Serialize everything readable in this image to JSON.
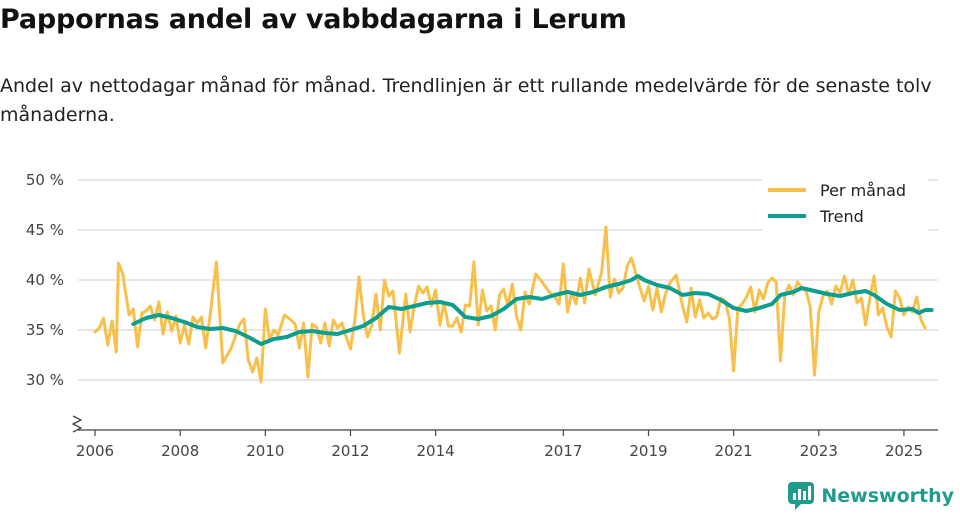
{
  "header": {
    "title": "Pappornas andel av vabbdagarna i Lerum",
    "subtitle": "Andel av nettodagar månad för månad. Trendlinjen är ett rullande medelvärde för de senaste tolv månaderna."
  },
  "brand": {
    "name": "Newsworthy",
    "icon": "newsworthy-logo-icon"
  },
  "colors": {
    "per_month": "#f8c04b",
    "trend": "#0e9e8e",
    "grid": "#dddddd",
    "axis": "#444444"
  },
  "chart_data": {
    "type": "line",
    "title": "Pappornas andel av vabbdagarna i Lerum",
    "xlabel": "",
    "ylabel": "",
    "ylim": [
      25,
      50
    ],
    "yticks": [
      30,
      35,
      40,
      45,
      50
    ],
    "ytick_labels": [
      "30 %",
      "35 %",
      "40 %",
      "45 %",
      "50 %"
    ],
    "xlim": [
      2005.6,
      2025.8
    ],
    "xticks": [
      2006,
      2008,
      2010,
      2012,
      2014,
      2017,
      2019,
      2021,
      2023,
      2025
    ],
    "xtick_labels": [
      "2006",
      "2008",
      "2010",
      "2012",
      "2014",
      "2017",
      "2019",
      "2021",
      "2023",
      "2025"
    ],
    "axis_break": true,
    "grid": true,
    "legend_position": "top-right",
    "legend": [
      "Per månad",
      "Trend"
    ],
    "series": [
      {
        "name": "Per månad",
        "color": "#f8c04b",
        "points": [
          [
            2006.0,
            34.8
          ],
          [
            2006.1,
            35.2
          ],
          [
            2006.2,
            36.2
          ],
          [
            2006.3,
            33.5
          ],
          [
            2006.4,
            35.9
          ],
          [
            2006.5,
            32.8
          ],
          [
            2006.55,
            41.7
          ],
          [
            2006.65,
            40.6
          ],
          [
            2006.8,
            36.5
          ],
          [
            2006.9,
            37.1
          ],
          [
            2007.0,
            33.3
          ],
          [
            2007.1,
            36.7
          ],
          [
            2007.2,
            36.9
          ],
          [
            2007.3,
            37.4
          ],
          [
            2007.4,
            36.0
          ],
          [
            2007.5,
            37.8
          ],
          [
            2007.6,
            34.6
          ],
          [
            2007.7,
            36.8
          ],
          [
            2007.8,
            34.9
          ],
          [
            2007.9,
            36.4
          ],
          [
            2008.0,
            33.7
          ],
          [
            2008.1,
            35.5
          ],
          [
            2008.2,
            33.6
          ],
          [
            2008.3,
            36.3
          ],
          [
            2008.4,
            35.7
          ],
          [
            2008.5,
            36.3
          ],
          [
            2008.6,
            33.2
          ],
          [
            2008.7,
            36.4
          ],
          [
            2008.85,
            41.8
          ],
          [
            2009.0,
            31.7
          ],
          [
            2009.2,
            33.2
          ],
          [
            2009.4,
            35.6
          ],
          [
            2009.5,
            36.1
          ],
          [
            2009.6,
            32.0
          ],
          [
            2009.7,
            30.8
          ],
          [
            2009.8,
            32.2
          ],
          [
            2009.9,
            29.8
          ],
          [
            2010.0,
            37.1
          ],
          [
            2010.1,
            34.0
          ],
          [
            2010.2,
            35.0
          ],
          [
            2010.3,
            34.5
          ],
          [
            2010.45,
            36.5
          ],
          [
            2010.6,
            36.0
          ],
          [
            2010.7,
            35.6
          ],
          [
            2010.8,
            33.2
          ],
          [
            2010.9,
            35.7
          ],
          [
            2011.0,
            30.3
          ],
          [
            2011.1,
            35.6
          ],
          [
            2011.2,
            35.3
          ],
          [
            2011.3,
            33.7
          ],
          [
            2011.4,
            35.7
          ],
          [
            2011.5,
            33.4
          ],
          [
            2011.6,
            36.0
          ],
          [
            2011.7,
            35.2
          ],
          [
            2011.8,
            35.7
          ],
          [
            2011.9,
            34.3
          ],
          [
            2012.0,
            33.1
          ],
          [
            2012.1,
            35.9
          ],
          [
            2012.2,
            40.3
          ],
          [
            2012.3,
            36.6
          ],
          [
            2012.4,
            34.3
          ],
          [
            2012.5,
            35.5
          ],
          [
            2012.6,
            38.6
          ],
          [
            2012.7,
            35.0
          ],
          [
            2012.8,
            40.0
          ],
          [
            2012.9,
            38.4
          ],
          [
            2013.0,
            38.9
          ],
          [
            2013.15,
            32.7
          ],
          [
            2013.3,
            38.6
          ],
          [
            2013.4,
            34.8
          ],
          [
            2013.5,
            37.4
          ],
          [
            2013.6,
            39.4
          ],
          [
            2013.7,
            38.7
          ],
          [
            2013.8,
            39.3
          ],
          [
            2013.9,
            37.4
          ],
          [
            2014.0,
            39.0
          ],
          [
            2014.1,
            35.5
          ],
          [
            2014.2,
            37.7
          ],
          [
            2014.3,
            35.4
          ],
          [
            2014.4,
            35.4
          ],
          [
            2014.5,
            36.2
          ],
          [
            2014.6,
            34.8
          ],
          [
            2014.7,
            37.5
          ],
          [
            2014.8,
            37.4
          ],
          [
            2014.9,
            41.8
          ],
          [
            2015.0,
            35.5
          ],
          [
            2015.1,
            39.0
          ],
          [
            2015.2,
            36.9
          ],
          [
            2015.3,
            37.4
          ],
          [
            2015.4,
            35.0
          ],
          [
            2015.5,
            38.5
          ],
          [
            2015.6,
            39.1
          ],
          [
            2015.7,
            37.4
          ],
          [
            2015.8,
            39.6
          ],
          [
            2015.9,
            36.4
          ],
          [
            2016.0,
            35.0
          ],
          [
            2016.1,
            38.8
          ],
          [
            2016.2,
            37.6
          ],
          [
            2016.35,
            40.6
          ],
          [
            2016.5,
            39.8
          ],
          [
            2016.65,
            38.9
          ],
          [
            2016.8,
            38.3
          ],
          [
            2016.9,
            37.6
          ],
          [
            2017.0,
            41.6
          ],
          [
            2017.1,
            36.8
          ],
          [
            2017.2,
            38.8
          ],
          [
            2017.3,
            37.6
          ],
          [
            2017.4,
            40.2
          ],
          [
            2017.5,
            37.7
          ],
          [
            2017.6,
            41.1
          ],
          [
            2017.75,
            38.5
          ],
          [
            2017.9,
            40.8
          ],
          [
            2018.0,
            45.3
          ],
          [
            2018.1,
            38.3
          ],
          [
            2018.2,
            40.1
          ],
          [
            2018.3,
            38.7
          ],
          [
            2018.4,
            39.2
          ],
          [
            2018.5,
            41.4
          ],
          [
            2018.6,
            42.2
          ],
          [
            2018.75,
            39.9
          ],
          [
            2018.9,
            37.9
          ],
          [
            2019.0,
            39.4
          ],
          [
            2019.1,
            37.0
          ],
          [
            2019.2,
            39.2
          ],
          [
            2019.3,
            36.8
          ],
          [
            2019.4,
            38.6
          ],
          [
            2019.5,
            39.7
          ],
          [
            2019.65,
            40.5
          ],
          [
            2019.8,
            37.4
          ],
          [
            2019.9,
            35.8
          ],
          [
            2020.0,
            39.2
          ],
          [
            2020.1,
            36.3
          ],
          [
            2020.2,
            38.0
          ],
          [
            2020.3,
            36.2
          ],
          [
            2020.4,
            36.7
          ],
          [
            2020.5,
            36.1
          ],
          [
            2020.6,
            36.3
          ],
          [
            2020.7,
            38.2
          ],
          [
            2020.8,
            37.9
          ],
          [
            2020.9,
            36.1
          ],
          [
            2021.0,
            30.9
          ],
          [
            2021.1,
            37.2
          ],
          [
            2021.2,
            37.6
          ],
          [
            2021.3,
            38.3
          ],
          [
            2021.4,
            39.3
          ],
          [
            2021.5,
            36.8
          ],
          [
            2021.6,
            39.0
          ],
          [
            2021.7,
            38.1
          ],
          [
            2021.8,
            39.7
          ],
          [
            2021.9,
            40.2
          ],
          [
            2022.0,
            39.8
          ],
          [
            2022.1,
            31.9
          ],
          [
            2022.2,
            38.4
          ],
          [
            2022.3,
            39.5
          ],
          [
            2022.4,
            38.5
          ],
          [
            2022.5,
            39.8
          ],
          [
            2022.6,
            39.2
          ],
          [
            2022.7,
            38.9
          ],
          [
            2022.8,
            37.3
          ],
          [
            2022.9,
            30.5
          ],
          [
            2023.0,
            36.8
          ],
          [
            2023.1,
            38.4
          ],
          [
            2023.2,
            38.9
          ],
          [
            2023.3,
            37.6
          ],
          [
            2023.4,
            39.4
          ],
          [
            2023.5,
            38.7
          ],
          [
            2023.6,
            40.4
          ],
          [
            2023.7,
            38.6
          ],
          [
            2023.8,
            40.0
          ],
          [
            2023.9,
            37.7
          ],
          [
            2024.0,
            38.2
          ],
          [
            2024.1,
            35.5
          ],
          [
            2024.2,
            38.2
          ],
          [
            2024.3,
            40.4
          ],
          [
            2024.4,
            36.5
          ],
          [
            2024.5,
            37.2
          ],
          [
            2024.6,
            35.3
          ],
          [
            2024.7,
            34.3
          ],
          [
            2024.8,
            38.9
          ],
          [
            2024.9,
            38.2
          ],
          [
            2025.0,
            36.5
          ],
          [
            2025.1,
            37.3
          ],
          [
            2025.2,
            36.8
          ],
          [
            2025.3,
            38.3
          ],
          [
            2025.4,
            36.0
          ],
          [
            2025.5,
            35.2
          ]
        ]
      },
      {
        "name": "Trend",
        "color": "#0e9e8e",
        "points": [
          [
            2006.9,
            35.6
          ],
          [
            2007.2,
            36.2
          ],
          [
            2007.5,
            36.5
          ],
          [
            2007.8,
            36.2
          ],
          [
            2008.1,
            35.8
          ],
          [
            2008.4,
            35.3
          ],
          [
            2008.7,
            35.1
          ],
          [
            2009.0,
            35.2
          ],
          [
            2009.3,
            34.9
          ],
          [
            2009.6,
            34.3
          ],
          [
            2009.9,
            33.6
          ],
          [
            2010.2,
            34.1
          ],
          [
            2010.5,
            34.3
          ],
          [
            2010.8,
            34.8
          ],
          [
            2011.1,
            34.9
          ],
          [
            2011.4,
            34.7
          ],
          [
            2011.7,
            34.6
          ],
          [
            2012.0,
            35.0
          ],
          [
            2012.3,
            35.4
          ],
          [
            2012.6,
            36.2
          ],
          [
            2012.9,
            37.3
          ],
          [
            2013.2,
            37.1
          ],
          [
            2013.5,
            37.4
          ],
          [
            2013.8,
            37.7
          ],
          [
            2014.1,
            37.8
          ],
          [
            2014.4,
            37.5
          ],
          [
            2014.7,
            36.3
          ],
          [
            2015.0,
            36.1
          ],
          [
            2015.3,
            36.4
          ],
          [
            2015.6,
            37.1
          ],
          [
            2015.9,
            38.1
          ],
          [
            2016.2,
            38.3
          ],
          [
            2016.5,
            38.1
          ],
          [
            2016.8,
            38.5
          ],
          [
            2017.1,
            38.8
          ],
          [
            2017.4,
            38.5
          ],
          [
            2017.7,
            38.8
          ],
          [
            2018.0,
            39.3
          ],
          [
            2018.3,
            39.6
          ],
          [
            2018.6,
            40.0
          ],
          [
            2018.75,
            40.4
          ],
          [
            2018.9,
            40.0
          ],
          [
            2019.2,
            39.5
          ],
          [
            2019.5,
            39.2
          ],
          [
            2019.8,
            38.5
          ],
          [
            2020.1,
            38.7
          ],
          [
            2020.4,
            38.6
          ],
          [
            2020.7,
            38.0
          ],
          [
            2021.0,
            37.2
          ],
          [
            2021.3,
            36.9
          ],
          [
            2021.6,
            37.2
          ],
          [
            2021.9,
            37.6
          ],
          [
            2022.1,
            38.5
          ],
          [
            2022.4,
            38.8
          ],
          [
            2022.6,
            39.2
          ],
          [
            2022.9,
            38.9
          ],
          [
            2023.2,
            38.6
          ],
          [
            2023.5,
            38.4
          ],
          [
            2023.8,
            38.7
          ],
          [
            2024.1,
            38.9
          ],
          [
            2024.3,
            38.5
          ],
          [
            2024.6,
            37.6
          ],
          [
            2024.9,
            37.0
          ],
          [
            2025.2,
            37.1
          ],
          [
            2025.35,
            36.7
          ],
          [
            2025.5,
            37.0
          ],
          [
            2025.65,
            37.0
          ]
        ]
      }
    ]
  }
}
